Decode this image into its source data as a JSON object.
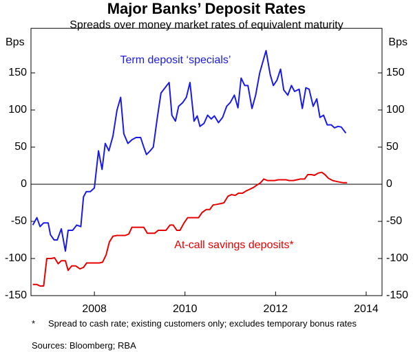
{
  "chart_data": {
    "type": "line",
    "title": "Major Banks’ Deposit Rates",
    "subtitle": "Spreads over money market rates of equivalent maturity",
    "y_label": "Bps",
    "y2_label": "Bps",
    "xlim": [
      2006.6,
      2014.35
    ],
    "xticks": [
      2008,
      2010,
      2012,
      2014
    ],
    "ylim": [
      -150,
      210
    ],
    "yticks": [
      -150,
      -100,
      -50,
      0,
      50,
      100,
      150
    ],
    "series": [
      {
        "name": "Term deposit ‘specials’",
        "color": "#1a1ae6",
        "x": [
          2006.64,
          2006.73,
          2006.8,
          2006.88,
          2006.98,
          2007.03,
          2007.11,
          2007.18,
          2007.27,
          2007.36,
          2007.42,
          2007.52,
          2007.61,
          2007.7,
          2007.76,
          2007.82,
          2007.91,
          2008.0,
          2008.09,
          2008.17,
          2008.24,
          2008.32,
          2008.41,
          2008.5,
          2008.58,
          2008.65,
          2008.74,
          2008.83,
          2008.92,
          2009.02,
          2009.09,
          2009.15,
          2009.23,
          2009.3,
          2009.39,
          2009.47,
          2009.56,
          2009.65,
          2009.71,
          2009.79,
          2009.86,
          2009.95,
          2010.03,
          2010.11,
          2010.2,
          2010.27,
          2010.33,
          2010.42,
          2010.5,
          2010.58,
          2010.65,
          2010.74,
          2010.83,
          2010.92,
          2011.0,
          2011.09,
          2011.17,
          2011.24,
          2011.32,
          2011.39,
          2011.48,
          2011.56,
          2011.65,
          2011.79,
          2011.88,
          2011.95,
          2012.03,
          2012.11,
          2012.18,
          2012.27,
          2012.35,
          2012.42,
          2012.52,
          2012.59,
          2012.67,
          2012.74,
          2012.83,
          2012.91,
          2012.98,
          2013.06,
          2013.14,
          2013.23,
          2013.3,
          2013.38,
          2013.45,
          2013.55
        ],
        "values": [
          -55,
          -45,
          -57,
          -52,
          -52,
          -68,
          -75,
          -75,
          -60,
          -90,
          -62,
          -62,
          -55,
          -57,
          -17,
          -10,
          -10,
          -5,
          45,
          20,
          55,
          45,
          65,
          100,
          117,
          68,
          55,
          60,
          63,
          63,
          50,
          40,
          45,
          50,
          90,
          123,
          130,
          137,
          93,
          85,
          105,
          110,
          117,
          137,
          85,
          92,
          78,
          82,
          93,
          88,
          92,
          83,
          90,
          105,
          110,
          120,
          103,
          143,
          133,
          133,
          102,
          120,
          150,
          180,
          148,
          133,
          140,
          155,
          127,
          120,
          133,
          125,
          128,
          102,
          130,
          128,
          105,
          115,
          90,
          93,
          80,
          80,
          76,
          78,
          77,
          69
        ]
      },
      {
        "name": "At-call savings deposits*",
        "color": "#e60000",
        "x": [
          2006.64,
          2006.73,
          2006.8,
          2006.88,
          2006.95,
          2007.05,
          2007.12,
          2007.2,
          2007.27,
          2007.36,
          2007.42,
          2007.5,
          2007.59,
          2007.68,
          2007.76,
          2007.83,
          2007.92,
          2008.02,
          2008.11,
          2008.18,
          2008.26,
          2008.33,
          2008.41,
          2008.5,
          2008.59,
          2008.68,
          2008.76,
          2008.83,
          2008.92,
          2009.02,
          2009.09,
          2009.17,
          2009.24,
          2009.33,
          2009.41,
          2009.5,
          2009.58,
          2009.67,
          2009.74,
          2009.82,
          2009.89,
          2009.98,
          2010.06,
          2010.14,
          2010.23,
          2010.3,
          2010.38,
          2010.47,
          2010.55,
          2010.62,
          2010.71,
          2010.79,
          2010.86,
          2010.95,
          2011.03,
          2011.11,
          2011.18,
          2011.27,
          2011.35,
          2011.42,
          2011.52,
          2011.59,
          2011.67,
          2011.74,
          2011.82,
          2011.91,
          2011.98,
          2012.06,
          2012.15,
          2012.23,
          2012.3,
          2012.39,
          2012.47,
          2012.55,
          2012.64,
          2012.71,
          2012.79,
          2012.86,
          2012.94,
          2013.02,
          2013.09,
          2013.17,
          2013.26,
          2013.33,
          2013.41,
          2013.5,
          2013.58
        ],
        "values": [
          -135,
          -135,
          -137,
          -137,
          -100,
          -100,
          -99,
          -107,
          -103,
          -103,
          -116,
          -110,
          -110,
          -114,
          -112,
          -106,
          -106,
          -106,
          -106,
          -105,
          -95,
          -78,
          -70,
          -69,
          -69,
          -69,
          -67,
          -58,
          -58,
          -58,
          -58,
          -66,
          -66,
          -66,
          -62,
          -62,
          -62,
          -55,
          -55,
          -62,
          -62,
          -52,
          -45,
          -45,
          -45,
          -45,
          -38,
          -34,
          -34,
          -28,
          -27,
          -26,
          -25,
          -16,
          -14,
          -15,
          -12,
          -12,
          -9,
          -7,
          -4,
          -1,
          2,
          7,
          5,
          5,
          5,
          6,
          6,
          6,
          5,
          5,
          6,
          7,
          7,
          13,
          13,
          12,
          15,
          16,
          13,
          8,
          5,
          4,
          3,
          2,
          2
        ]
      }
    ],
    "footnote_marker": "*",
    "footnote": "Spread to cash rate; existing customers only; excludes temporary bonus rates",
    "sources": "Sources: Bloomberg; RBA"
  }
}
